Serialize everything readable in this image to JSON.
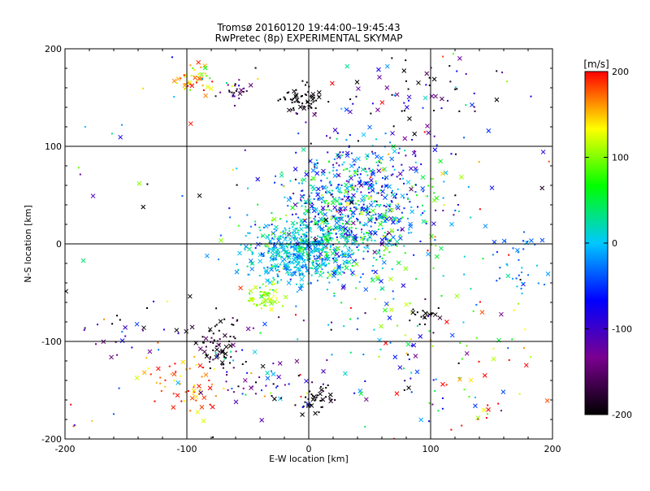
{
  "chart_data": {
    "type": "scatter",
    "title": "Tromsø 20160120 19:44:00–19:45:43",
    "subtitle": "RwPretec (8p) EXPERIMENTAL SKYMAP",
    "xlabel": "E-W location [km]",
    "ylabel": "N-S location [km]",
    "xlim": [
      -200,
      200
    ],
    "ylim": [
      -200,
      200
    ],
    "xticks": [
      "-200",
      "-100",
      "0",
      "100",
      "200"
    ],
    "yticks": [
      "-200",
      "-100",
      "0",
      "100",
      "200"
    ],
    "grid": true,
    "colorbar": {
      "label": "[m/s]",
      "range": [
        -200,
        200
      ],
      "ticks": [
        "200",
        "100",
        "0",
        "-100",
        "-200"
      ],
      "colormap": [
        "#000000",
        "#7a0090",
        "#0000ff",
        "#00c8ff",
        "#00ff00",
        "#ffff00",
        "#ff0000"
      ]
    },
    "markers": [
      "dot",
      "cross"
    ],
    "clusters": [
      {
        "x": 35,
        "y": 45,
        "sx": 30,
        "sy": 30,
        "v": -40,
        "sv": 60,
        "n": 550
      },
      {
        "x": -10,
        "y": -10,
        "sx": 22,
        "sy": 16,
        "v": 0,
        "sv": 25,
        "n": 420
      },
      {
        "x": 20,
        "y": 5,
        "sx": 30,
        "sy": 20,
        "v": 10,
        "sv": 40,
        "n": 180
      },
      {
        "x": -5,
        "y": 148,
        "sx": 10,
        "sy": 8,
        "v": -200,
        "sv": 10,
        "n": 60
      },
      {
        "x": -95,
        "y": 170,
        "sx": 8,
        "sy": 8,
        "v": 160,
        "sv": 40,
        "n": 45
      },
      {
        "x": -60,
        "y": 155,
        "sx": 8,
        "sy": 6,
        "v": -150,
        "sv": 40,
        "n": 25
      },
      {
        "x": -35,
        "y": -55,
        "sx": 8,
        "sy": 8,
        "v": 110,
        "sv": 15,
        "n": 50
      },
      {
        "x": -75,
        "y": -105,
        "sx": 12,
        "sy": 15,
        "v": -190,
        "sv": 30,
        "n": 70
      },
      {
        "x": -100,
        "y": -140,
        "sx": 15,
        "sy": 15,
        "v": 175,
        "sv": 30,
        "n": 60
      },
      {
        "x": 10,
        "y": -160,
        "sx": 8,
        "sy": 8,
        "v": -200,
        "sv": 10,
        "n": 35
      },
      {
        "x": 95,
        "y": -72,
        "sx": 6,
        "sy": 5,
        "v": -200,
        "sv": 10,
        "n": 22
      },
      {
        "x": 40,
        "y": 10,
        "sx": 40,
        "sy": 40,
        "v": 60,
        "sv": 60,
        "n": 200
      },
      {
        "x": 170,
        "y": -20,
        "sx": 15,
        "sy": 20,
        "v": -20,
        "sv": 20,
        "n": 40
      },
      {
        "x": 0,
        "y": 0,
        "sx": 200,
        "sy": 200,
        "v": 0,
        "sv": 150,
        "n": 320
      },
      {
        "x": 95,
        "y": 150,
        "sx": 40,
        "sy": 25,
        "v": -150,
        "sv": 80,
        "n": 70
      },
      {
        "x": -40,
        "y": -140,
        "sx": 20,
        "sy": 15,
        "v": -100,
        "sv": 80,
        "n": 50
      },
      {
        "x": 60,
        "y": -120,
        "sx": 40,
        "sy": 40,
        "v": -50,
        "sv": 80,
        "n": 60
      },
      {
        "x": 135,
        "y": -130,
        "sx": 35,
        "sy": 35,
        "v": 120,
        "sv": 80,
        "n": 50
      },
      {
        "x": -160,
        "y": -100,
        "sx": 20,
        "sy": 15,
        "v": -150,
        "sv": 50,
        "n": 25
      }
    ]
  }
}
